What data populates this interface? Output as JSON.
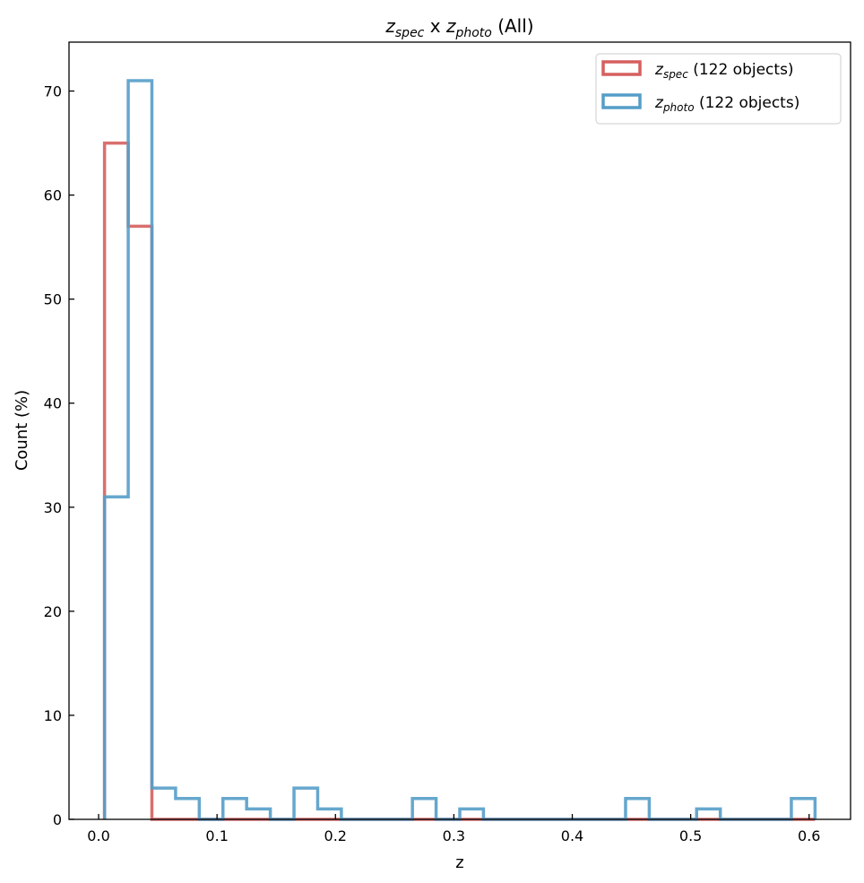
{
  "chart_data": {
    "type": "histogram-step",
    "title": {
      "a": "z",
      "a_sub": "spec",
      "mid": " x ",
      "b": "z",
      "b_sub": "photo",
      "suffix": " (All)"
    },
    "xlabel": "z",
    "ylabel": "Count (%)",
    "xlim": [
      -0.025,
      0.635
    ],
    "ylim": [
      0,
      74.7
    ],
    "xticks": [
      "0.0",
      "0.1",
      "0.2",
      "0.3",
      "0.4",
      "0.5",
      "0.6"
    ],
    "yticks": [
      "0",
      "10",
      "20",
      "30",
      "40",
      "50",
      "60",
      "70"
    ],
    "bin_start": 0.005,
    "bin_width": 0.02,
    "legend_position": "upper-right",
    "grid": false,
    "series": [
      {
        "name": "z",
        "sub": "spec",
        "label": " (122 objects)",
        "color": "#d65f5f",
        "values": [
          65,
          57,
          0,
          0,
          0,
          0,
          0,
          0,
          0,
          0,
          0,
          0,
          0,
          0,
          0,
          0,
          0,
          0,
          0,
          0,
          0,
          0,
          0,
          0,
          0,
          0,
          0,
          0,
          0,
          0
        ]
      },
      {
        "name": "z",
        "sub": "photo",
        "label": " (122 objects)",
        "color": "#559dc8",
        "values": [
          31,
          71,
          3,
          2,
          0,
          2,
          1,
          0,
          3,
          1,
          0,
          0,
          0,
          2,
          0,
          1,
          0,
          0,
          0,
          0,
          0,
          0,
          2,
          0,
          0,
          1,
          0,
          0,
          0,
          2
        ]
      }
    ]
  }
}
